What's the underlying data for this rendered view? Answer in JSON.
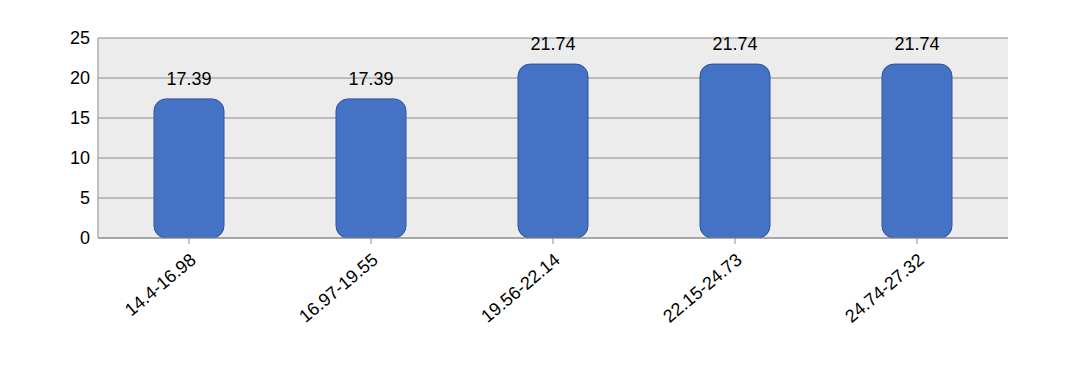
{
  "chart_data": {
    "type": "bar",
    "categories": [
      "14.4-16.98",
      "16.97-19.55",
      "19.56-22.14",
      "22.15-24.73",
      "24.74-27.32"
    ],
    "values": [
      17.39,
      17.39,
      21.74,
      21.74,
      21.74
    ],
    "color": "#4472c4",
    "ylim": [
      0,
      25
    ],
    "yticks": [
      0,
      5,
      10,
      15,
      20,
      25
    ],
    "grid": true,
    "data_labels": true
  }
}
